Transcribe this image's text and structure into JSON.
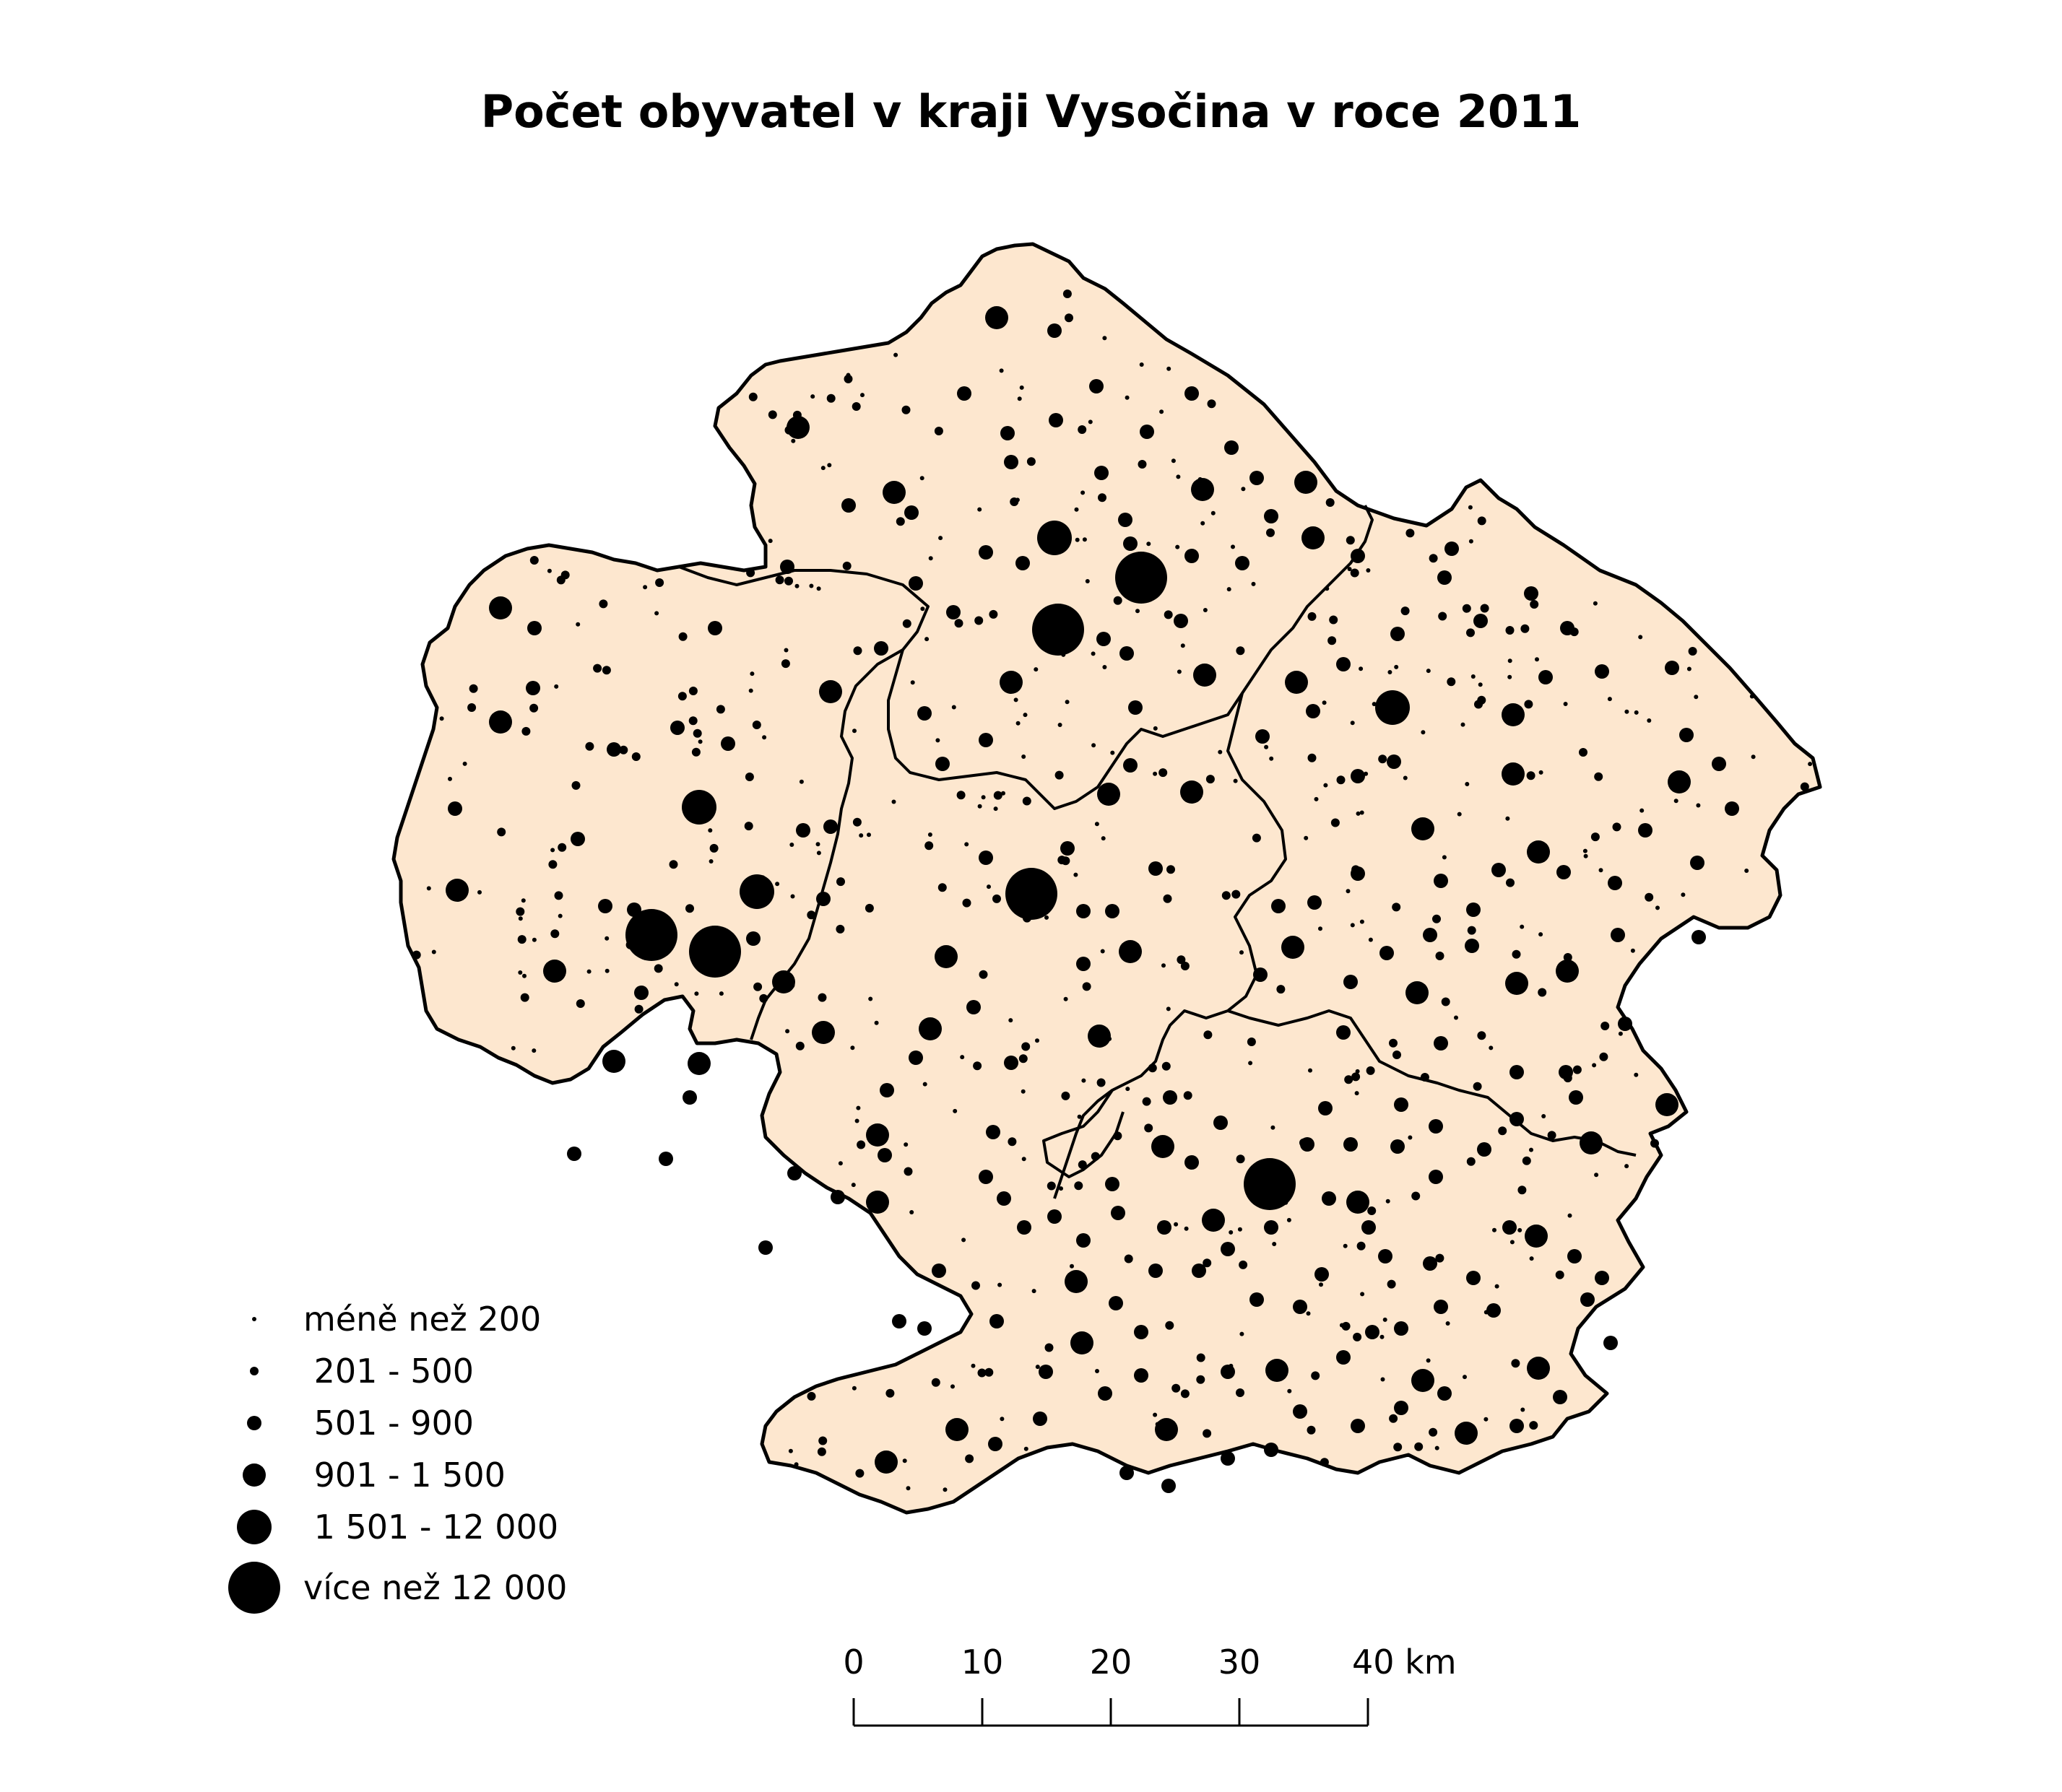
{
  "title": "Počet obyvatel v kraji Vysočina v roce 2011",
  "colors": {
    "region_fill": "#fde7cf",
    "border": "#000000",
    "symbol": "#000000",
    "background": "#ffffff"
  },
  "legend": {
    "items": [
      {
        "label": "méně než 200",
        "class": 1
      },
      {
        "label": " 201 - 500",
        "class": 2
      },
      {
        "label": " 501 - 900",
        "class": 3
      },
      {
        "label": " 901 - 1 500",
        "class": 4
      },
      {
        "label": " 1 501 - 12 000",
        "class": 5
      },
      {
        "label": "více než 12 000",
        "class": 6
      }
    ]
  },
  "scale_bar": {
    "ticks": [
      "0",
      "10",
      "20",
      "30",
      "40 km"
    ]
  }
}
